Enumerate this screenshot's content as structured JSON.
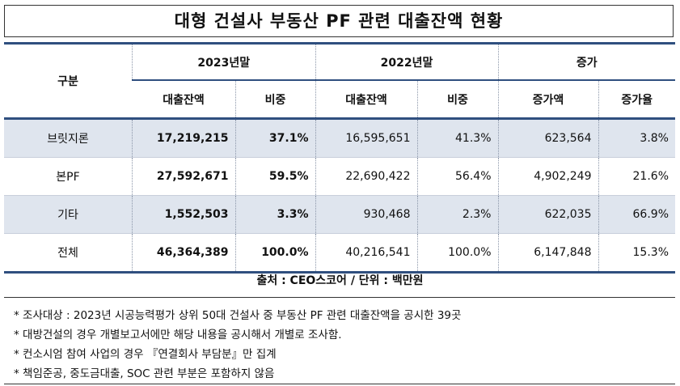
{
  "title": "대형 건설사 부동산 PF 관련 대출잔액 현황",
  "table": {
    "header_top": [
      "구분",
      "2023년말",
      "2022년말",
      "증가"
    ],
    "header_sub": [
      "대출잔액",
      "비중",
      "대출잔액",
      "비중",
      "증가액",
      "증가율"
    ],
    "rows": [
      [
        "브릿지론",
        "17,219,215",
        "37.1%",
        "16,595,651",
        "41.3%",
        "623,564",
        "3.8%"
      ],
      [
        "본PF",
        "27,592,671",
        "59.5%",
        "22,690,422",
        "56.4%",
        "4,902,249",
        "21.6%"
      ],
      [
        "기타",
        "1,552,503",
        "3.3%",
        "930,468",
        "2.3%",
        "622,035",
        "66.9%"
      ],
      [
        "전체",
        "46,364,389",
        "100.0%",
        "40,216,541",
        "100.0%",
        "6,147,848",
        "15.3%"
      ]
    ]
  },
  "source": "출처 : CEO스코어 / 단위 : 백만원",
  "notes": [
    "* 조사대상 : 2023년 시공능력평가 상위 50대 건설사 중 부동산 PF 관련 대출잔액을 공시한 39곳",
    "* 대방건설의 경우 개별보고서에만 해당 내용을 공시해서 개별로 조사함.",
    "* 컨소시엄 참여 사업의 경우 『연결회사 부담분』만 집계",
    "* 책임준공, 중도금대출, SOC 관련 부분은 포함하지 않음"
  ]
}
